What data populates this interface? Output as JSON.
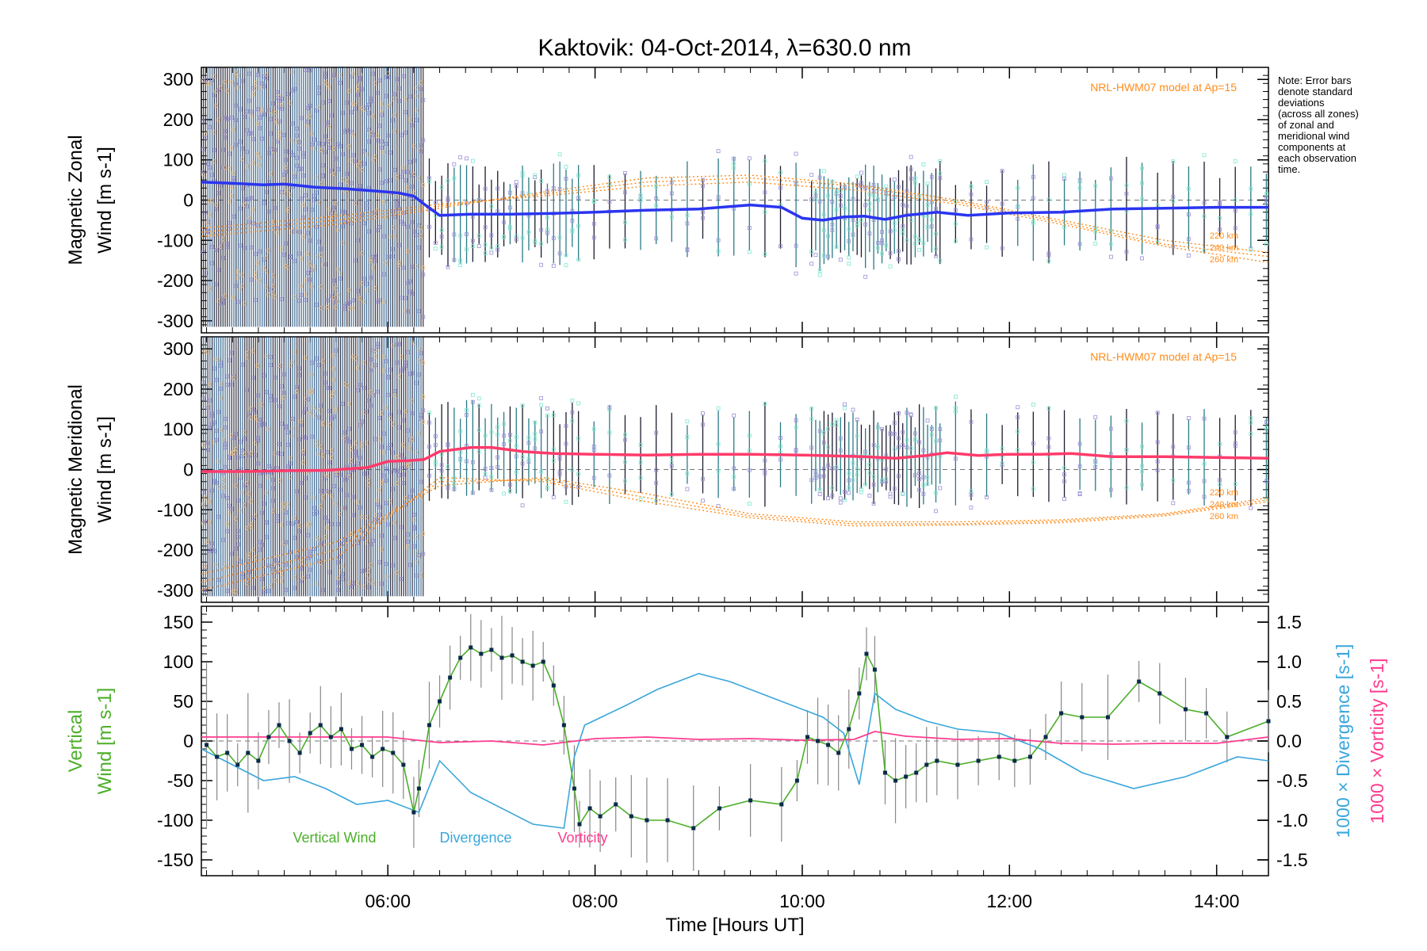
{
  "title": "Kaktovik: 04-Oct-2014, λ=630.0 nm",
  "note": "Note: Error bars\ndenote standard\ndeviations\n(across all zones)\nof zonal and\nmeridional wind\ncomponents at\neach observation\ntime.",
  "colors": {
    "zonal_line": "#2a35f0",
    "meridional_line": "#ff3b6b",
    "model": "#ff8c1a",
    "vertical": "#4caf2a",
    "divergence": "#3aa6dc",
    "vorticity": "#ff3b8e",
    "scatter_lavender": "#9a8fd8",
    "scatter_cyan": "#7fe8d0",
    "errorbar": "#1c1c2e"
  },
  "chart_data": [
    {
      "type": "line",
      "panel": "zonal",
      "ylabel_line1": "Magnetic Zonal",
      "ylabel_line2": "Wind [m s-1]",
      "ylim": [
        -330,
        330
      ],
      "yticks": [
        -300,
        -200,
        -100,
        0,
        100,
        200,
        300
      ],
      "xlim": [
        4.2,
        14.5
      ],
      "model_label": "NRL-HWM07 model at Ap=15",
      "model_alt_labels": [
        "220 km",
        "240 km",
        "260 km"
      ],
      "series": [
        {
          "name": "Magnetic Zonal Wind",
          "x": [
            4.2,
            4.5,
            4.8,
            5.0,
            5.3,
            5.6,
            5.9,
            6.1,
            6.25,
            6.35,
            6.5,
            6.8,
            7.2,
            7.6,
            8.0,
            8.5,
            9.0,
            9.5,
            9.8,
            10.0,
            10.2,
            10.4,
            10.6,
            10.8,
            11.0,
            11.3,
            11.6,
            12.0,
            12.5,
            13.0,
            13.5,
            14.0,
            14.5
          ],
          "y": [
            45,
            42,
            38,
            40,
            32,
            28,
            22,
            18,
            10,
            -10,
            -38,
            -35,
            -35,
            -33,
            -30,
            -25,
            -22,
            -12,
            -18,
            -45,
            -50,
            -42,
            -40,
            -48,
            -38,
            -30,
            -38,
            -32,
            -30,
            -22,
            -20,
            -18,
            -18
          ]
        }
      ],
      "model_curves": [
        {
          "name": "220 km",
          "x": [
            4.2,
            5.5,
            6.5,
            7.5,
            8.5,
            9.5,
            10.5,
            11.5,
            12.5,
            13.5,
            14.5
          ],
          "y": [
            -90,
            -60,
            -20,
            20,
            55,
            62,
            40,
            0,
            -50,
            -100,
            -130
          ]
        },
        {
          "name": "240 km",
          "x": [
            4.2,
            5.5,
            6.5,
            7.5,
            8.5,
            9.5,
            10.5,
            11.5,
            12.5,
            13.5,
            14.5
          ],
          "y": [
            -80,
            -50,
            -15,
            15,
            45,
            55,
            35,
            -5,
            -55,
            -110,
            -140
          ]
        },
        {
          "name": "260 km",
          "x": [
            4.2,
            5.5,
            6.5,
            7.5,
            8.5,
            9.5,
            10.5,
            11.5,
            12.5,
            13.5,
            14.5
          ],
          "y": [
            -70,
            -40,
            -10,
            10,
            35,
            45,
            25,
            -10,
            -60,
            -115,
            -155
          ]
        }
      ]
    },
    {
      "type": "line",
      "panel": "meridional",
      "ylabel_line1": "Magnetic Meridional",
      "ylabel_line2": "Wind [m s-1]",
      "ylim": [
        -330,
        330
      ],
      "yticks": [
        -300,
        -200,
        -100,
        0,
        100,
        200,
        300
      ],
      "xlim": [
        4.2,
        14.5
      ],
      "model_label": "NRL-HWM07 model at Ap=15",
      "model_alt_labels": [
        "220 km",
        "240 km",
        "260 km"
      ],
      "series": [
        {
          "name": "Magnetic Meridional Wind",
          "x": [
            4.2,
            4.6,
            5.0,
            5.4,
            5.8,
            6.0,
            6.2,
            6.35,
            6.5,
            6.8,
            7.0,
            7.3,
            7.6,
            8.0,
            8.5,
            9.0,
            9.5,
            10.0,
            10.3,
            10.6,
            10.9,
            11.2,
            11.4,
            11.7,
            12.0,
            12.3,
            12.6,
            13.0,
            13.5,
            14.0,
            14.5
          ],
          "y": [
            -5,
            -5,
            -3,
            -2,
            5,
            20,
            22,
            25,
            45,
            55,
            55,
            45,
            40,
            38,
            36,
            38,
            38,
            36,
            34,
            32,
            28,
            35,
            42,
            35,
            38,
            38,
            40,
            32,
            32,
            30,
            28
          ]
        }
      ],
      "model_curves": [
        {
          "name": "220 km",
          "x": [
            4.2,
            5.5,
            6.5,
            7.5,
            8.5,
            9.5,
            10.5,
            11.5,
            12.5,
            13.5,
            14.5
          ],
          "y": [
            -260,
            -180,
            -40,
            -20,
            -60,
            -110,
            -130,
            -130,
            -125,
            -110,
            -70
          ]
        },
        {
          "name": "240 km",
          "x": [
            4.2,
            5.5,
            6.5,
            7.5,
            8.5,
            9.5,
            10.5,
            11.5,
            12.5,
            13.5,
            14.5
          ],
          "y": [
            -280,
            -200,
            -30,
            -25,
            -70,
            -115,
            -135,
            -135,
            -128,
            -112,
            -75
          ]
        },
        {
          "name": "260 km",
          "x": [
            4.2,
            5.5,
            6.5,
            7.5,
            8.5,
            9.5,
            10.5,
            11.5,
            12.5,
            13.5,
            14.5
          ],
          "y": [
            -300,
            -220,
            -20,
            -30,
            -80,
            -120,
            -140,
            -138,
            -132,
            -115,
            -80
          ]
        }
      ]
    },
    {
      "type": "line",
      "panel": "vertical",
      "ylabel_line1": "Vertical",
      "ylabel_line2": "Wind [m s-1]",
      "ylabel_right1": "1000 × Divergence [s-1]",
      "ylabel_right2": "1000 × Vorticity [s-1]",
      "xlabel": "Time [Hours UT]",
      "ylim": [
        -170,
        170
      ],
      "yticks": [
        -150,
        -100,
        -50,
        0,
        50,
        100,
        150
      ],
      "y2lim": [
        -1.7,
        1.7
      ],
      "y2ticks": [
        -1.5,
        -1.0,
        -0.5,
        0.0,
        0.5,
        1.0,
        1.5
      ],
      "xlim": [
        4.2,
        14.5
      ],
      "xticks": [
        "06:00",
        "08:00",
        "10:00",
        "12:00",
        "14:00"
      ],
      "xtick_values": [
        6,
        8,
        10,
        12,
        14
      ],
      "legend": [
        "Vertical Wind",
        "Divergence",
        "Vorticity"
      ],
      "series": [
        {
          "name": "Vertical Wind",
          "x": [
            4.25,
            4.35,
            4.45,
            4.55,
            4.65,
            4.75,
            4.85,
            4.95,
            5.05,
            5.15,
            5.25,
            5.35,
            5.45,
            5.55,
            5.65,
            5.75,
            5.85,
            5.95,
            6.05,
            6.15,
            6.25,
            6.3,
            6.4,
            6.5,
            6.6,
            6.7,
            6.8,
            6.9,
            7.0,
            7.1,
            7.2,
            7.3,
            7.4,
            7.5,
            7.6,
            7.7,
            7.8,
            7.85,
            7.95,
            8.05,
            8.2,
            8.35,
            8.5,
            8.7,
            8.95,
            9.2,
            9.5,
            9.8,
            9.95,
            10.05,
            10.15,
            10.25,
            10.35,
            10.45,
            10.55,
            10.62,
            10.7,
            10.8,
            10.9,
            11.0,
            11.1,
            11.2,
            11.3,
            11.5,
            11.7,
            11.9,
            12.05,
            12.2,
            12.35,
            12.5,
            12.7,
            12.95,
            13.25,
            13.45,
            13.7,
            13.9,
            14.1,
            14.5
          ],
          "y": [
            -5,
            -20,
            -15,
            -30,
            -15,
            -25,
            5,
            20,
            0,
            -15,
            10,
            20,
            5,
            15,
            -10,
            -5,
            -20,
            -10,
            -15,
            -30,
            -90,
            -60,
            20,
            50,
            80,
            105,
            118,
            110,
            115,
            105,
            108,
            100,
            95,
            100,
            70,
            20,
            -60,
            -105,
            -85,
            -95,
            -80,
            -95,
            -100,
            -100,
            -110,
            -85,
            -75,
            -80,
            -50,
            5,
            0,
            -5,
            -15,
            15,
            60,
            110,
            90,
            -40,
            -50,
            -45,
            -40,
            -30,
            -25,
            -30,
            -25,
            -20,
            -25,
            -20,
            5,
            35,
            30,
            30,
            75,
            60,
            40,
            35,
            5,
            25
          ]
        },
        {
          "name": "Divergence",
          "axis": "right",
          "x": [
            4.2,
            4.5,
            4.8,
            5.1,
            5.4,
            5.7,
            6.0,
            6.3,
            6.5,
            6.8,
            7.1,
            7.4,
            7.7,
            7.8,
            7.9,
            8.3,
            8.6,
            9.0,
            9.3,
            9.6,
            9.9,
            10.2,
            10.4,
            10.55,
            10.7,
            10.9,
            11.2,
            11.5,
            11.9,
            12.3,
            12.7,
            13.2,
            13.7,
            14.2,
            14.5
          ],
          "y": [
            -0.1,
            -0.3,
            -0.5,
            -0.45,
            -0.6,
            -0.8,
            -0.75,
            -0.9,
            -0.25,
            -0.65,
            -0.85,
            -1.05,
            -1.1,
            -0.2,
            0.2,
            0.45,
            0.65,
            0.85,
            0.75,
            0.6,
            0.45,
            0.3,
            0.1,
            -0.55,
            0.6,
            0.4,
            0.25,
            0.15,
            0.1,
            -0.1,
            -0.4,
            -0.6,
            -0.45,
            -0.2,
            -0.25
          ]
        },
        {
          "name": "Vorticity",
          "axis": "right",
          "x": [
            4.2,
            5.0,
            6.0,
            6.5,
            7.0,
            7.5,
            8.0,
            8.5,
            9.0,
            9.5,
            10.0,
            10.5,
            10.7,
            11.0,
            11.5,
            12.0,
            12.5,
            13.0,
            13.5,
            14.0,
            14.5
          ],
          "y": [
            0.05,
            0.05,
            0.05,
            -0.02,
            0.0,
            -0.05,
            0.03,
            0.05,
            0.02,
            0.03,
            0.01,
            0.02,
            0.12,
            0.06,
            0.02,
            0.03,
            -0.03,
            -0.04,
            -0.03,
            -0.03,
            0.05
          ]
        }
      ]
    }
  ]
}
